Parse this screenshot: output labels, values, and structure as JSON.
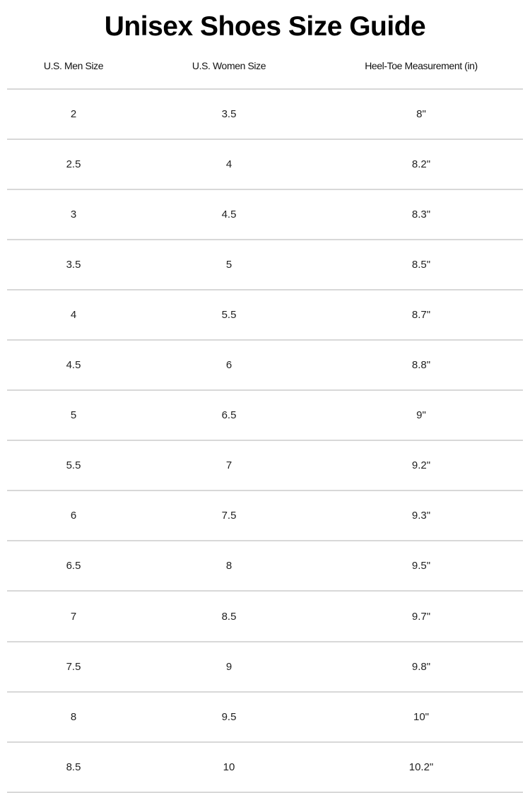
{
  "title": "Unisex Shoes Size Guide",
  "headers": [
    "U.S. Men Size",
    "U.S. Women Size",
    "Heel-Toe Measurement (in)"
  ],
  "rows": [
    [
      "2",
      "3.5",
      "8\""
    ],
    [
      "2.5",
      "4",
      "8.2\""
    ],
    [
      "3",
      "4.5",
      "8.3\""
    ],
    [
      "3.5",
      "5",
      "8.5\""
    ],
    [
      "4",
      "5.5",
      "8.7\""
    ],
    [
      "4.5",
      "6",
      "8.8\""
    ],
    [
      "5",
      "6.5",
      "9\""
    ],
    [
      "5.5",
      "7",
      "9.2\""
    ],
    [
      "6",
      "7.5",
      "9.3\""
    ],
    [
      "6.5",
      "8",
      "9.5\""
    ],
    [
      "7",
      "8.5",
      "9.7\""
    ],
    [
      "7.5",
      "9",
      "9.8\""
    ],
    [
      "8",
      "9.5",
      "10\""
    ],
    [
      "8.5",
      "10",
      "10.2\""
    ]
  ],
  "colors": {
    "text": "#111111",
    "divider": "#d8d8d8"
  }
}
